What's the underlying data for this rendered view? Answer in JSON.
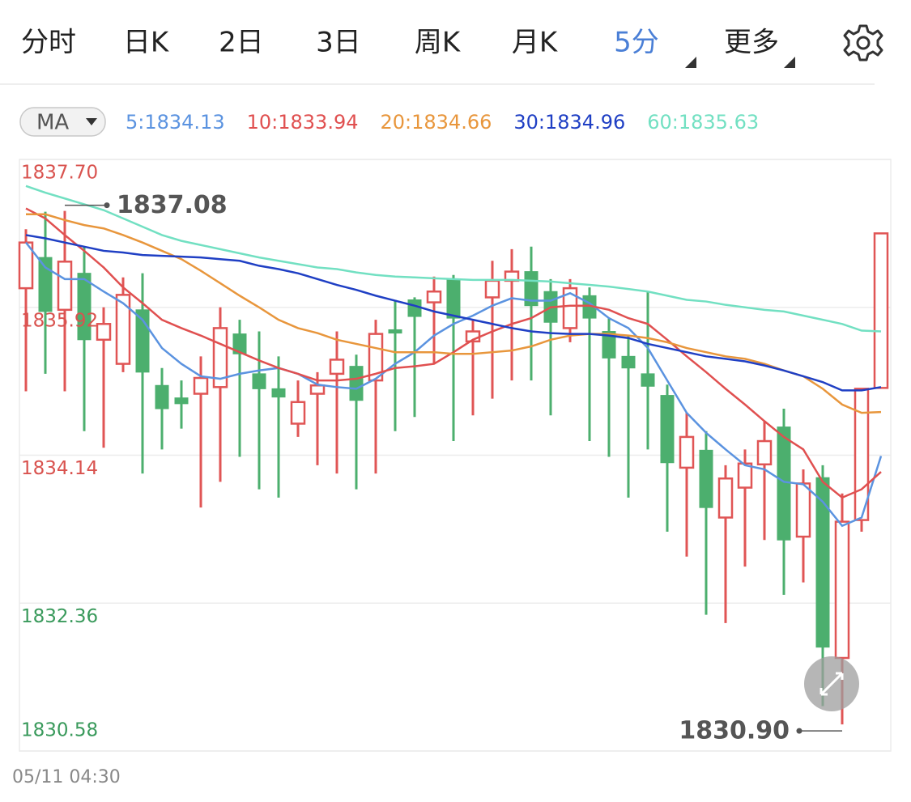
{
  "tabs": [
    "分时",
    "日K",
    "2日",
    "3日",
    "周K",
    "月K",
    "5分",
    "更多"
  ],
  "active_tab": "5分",
  "indicator_button": "MA",
  "chart_data": {
    "type": "candlestick",
    "up_color": "#e05555",
    "down_color": "#4caf6e",
    "categories": [
      "05/11 04:30",
      null,
      null,
      null,
      null,
      null,
      null,
      null,
      null,
      null,
      null,
      null,
      null,
      null,
      null,
      null,
      null,
      null,
      null,
      null,
      null,
      null,
      null,
      null,
      null,
      null,
      null,
      null,
      null,
      null,
      null,
      null,
      null,
      null,
      null,
      null,
      null,
      null,
      null,
      null,
      null,
      null,
      null,
      null,
      null
    ],
    "open": [
      1836.15,
      1836.52,
      1835.89,
      1836.33,
      1835.53,
      1835.24,
      1835.89,
      1834.98,
      1834.83,
      1834.88,
      1834.96,
      1835.6,
      1835.12,
      1834.94,
      1834.52,
      1834.88,
      1835.12,
      1835.21,
      1835.04,
      1835.65,
      1836.01,
      1835.98,
      1836.26,
      1835.51,
      1836.04,
      1836.24,
      1836.35,
      1836.11,
      1835.67,
      1836.06,
      1835.63,
      1835.33,
      1835.12,
      1834.86,
      1833.99,
      1834.2,
      1833.39,
      1833.75,
      1834.03,
      1834.48,
      1833.16,
      1833.87,
      1831.7,
      1833.36,
      1834.95
    ],
    "high": [
      1836.86,
      1837.07,
      1837.08,
      1836.65,
      1835.92,
      1836.28,
      1836.33,
      1835.19,
      1835.04,
      1835.33,
      1835.92,
      1835.77,
      1835.63,
      1835.33,
      1835.04,
      1835.14,
      1835.63,
      1835.35,
      1835.77,
      1836.01,
      1836.04,
      1836.29,
      1836.31,
      1835.77,
      1836.48,
      1836.62,
      1836.65,
      1836.26,
      1836.26,
      1836.16,
      1835.79,
      1835.58,
      1836.11,
      1834.99,
      1834.65,
      1834.43,
      1834.02,
      1834.21,
      1834.55,
      1834.7,
      1833.97,
      1834.02,
      1833.68,
      1834.94,
      1836.81
    ],
    "low": [
      1834.91,
      1835.12,
      1834.91,
      1834.43,
      1834.23,
      1835.14,
      1833.92,
      1834.21,
      1834.46,
      1833.51,
      1833.82,
      1834.12,
      1833.73,
      1833.63,
      1834.36,
      1834.02,
      1833.92,
      1833.73,
      1833.92,
      1834.43,
      1834.6,
      1835.24,
      1834.31,
      1834.62,
      1834.82,
      1835.04,
      1835.04,
      1834.62,
      1835.5,
      1834.31,
      1834.12,
      1833.63,
      1834.21,
      1833.22,
      1832.92,
      1832.22,
      1832.12,
      1832.8,
      1833.12,
      1832.46,
      1832.61,
      1831.12,
      1830.9,
      1833.22,
      1834.95
    ],
    "close": [
      1836.7,
      1835.87,
      1836.47,
      1835.53,
      1835.72,
      1836.07,
      1835.14,
      1834.7,
      1834.76,
      1835.07,
      1835.67,
      1835.36,
      1834.94,
      1834.84,
      1834.78,
      1834.98,
      1835.29,
      1834.8,
      1835.6,
      1835.61,
      1835.81,
      1836.11,
      1835.79,
      1835.63,
      1836.24,
      1836.35,
      1835.94,
      1835.74,
      1836.15,
      1835.79,
      1835.31,
      1835.19,
      1834.97,
      1834.05,
      1834.36,
      1833.51,
      1833.86,
      1834.04,
      1834.31,
      1833.12,
      1833.8,
      1831.83,
      1833.34,
      1834.94,
      1836.81
    ],
    "series": [
      {
        "name": "5:1834.13",
        "color": "#5b93e0",
        "values": [
          1836.7,
          1836.4,
          1836.26,
          1836.26,
          1836.11,
          1835.97,
          1835.77,
          1835.43,
          1835.24,
          1835.09,
          1835.06,
          1835.12,
          1835.16,
          1835.19,
          1835.12,
          1834.99,
          1834.96,
          1834.94,
          1835.06,
          1835.24,
          1835.38,
          1835.58,
          1835.72,
          1835.82,
          1835.94,
          1836.03,
          1836.0,
          1836.0,
          1836.09,
          1835.97,
          1835.79,
          1835.67,
          1835.43,
          1835.04,
          1834.65,
          1834.41,
          1834.21,
          1834.02,
          1833.97,
          1833.82,
          1833.79,
          1833.58,
          1833.29,
          1833.39,
          1834.13
        ]
      },
      {
        "name": "10:1833.94",
        "color": "#e05050",
        "values": [
          1837.11,
          1836.99,
          1836.79,
          1836.6,
          1836.4,
          1836.16,
          1835.97,
          1835.77,
          1835.67,
          1835.58,
          1835.48,
          1835.38,
          1835.28,
          1835.19,
          1835.12,
          1835.04,
          1835.04,
          1835.06,
          1835.12,
          1835.19,
          1835.21,
          1835.24,
          1835.38,
          1835.53,
          1835.63,
          1835.72,
          1835.79,
          1835.92,
          1835.94,
          1835.94,
          1835.89,
          1835.79,
          1835.72,
          1835.53,
          1835.33,
          1835.14,
          1834.94,
          1834.75,
          1834.55,
          1834.36,
          1834.21,
          1833.82,
          1833.63,
          1833.73,
          1833.94
        ]
      },
      {
        "name": "20:1834.66",
        "color": "#e8963c",
        "values": [
          1837.04,
          1837.04,
          1836.97,
          1836.91,
          1836.87,
          1836.79,
          1836.7,
          1836.6,
          1836.5,
          1836.36,
          1836.21,
          1836.06,
          1835.92,
          1835.77,
          1835.67,
          1835.61,
          1835.53,
          1835.48,
          1835.43,
          1835.38,
          1835.38,
          1835.38,
          1835.36,
          1835.36,
          1835.38,
          1835.4,
          1835.45,
          1835.53,
          1835.58,
          1835.6,
          1835.6,
          1835.58,
          1835.55,
          1835.5,
          1835.43,
          1835.38,
          1835.33,
          1835.3,
          1835.24,
          1835.16,
          1835.09,
          1834.94,
          1834.75,
          1834.65,
          1834.66
        ]
      },
      {
        "name": "30:1834.96",
        "color": "#1f3fc4",
        "values": [
          1836.79,
          1836.75,
          1836.7,
          1836.65,
          1836.6,
          1836.58,
          1836.55,
          1836.54,
          1836.53,
          1836.52,
          1836.5,
          1836.48,
          1836.42,
          1836.38,
          1836.33,
          1836.26,
          1836.19,
          1836.13,
          1836.06,
          1836.0,
          1835.94,
          1835.87,
          1835.82,
          1835.77,
          1835.72,
          1835.67,
          1835.63,
          1835.61,
          1835.6,
          1835.6,
          1835.58,
          1835.55,
          1835.48,
          1835.43,
          1835.38,
          1835.33,
          1835.3,
          1835.27,
          1835.22,
          1835.16,
          1835.09,
          1835.02,
          1834.92,
          1834.92,
          1834.96
        ]
      },
      {
        "name": "60:1835.63",
        "color": "#72e0c2",
        "values": [
          1837.38,
          1837.3,
          1837.23,
          1837.16,
          1837.09,
          1836.99,
          1836.89,
          1836.79,
          1836.72,
          1836.67,
          1836.62,
          1836.57,
          1836.52,
          1836.48,
          1836.44,
          1836.4,
          1836.38,
          1836.34,
          1836.31,
          1836.29,
          1836.28,
          1836.27,
          1836.26,
          1836.25,
          1836.25,
          1836.25,
          1836.24,
          1836.23,
          1836.21,
          1836.19,
          1836.17,
          1836.14,
          1836.11,
          1836.06,
          1836.01,
          1835.99,
          1835.95,
          1835.92,
          1835.89,
          1835.87,
          1835.82,
          1835.77,
          1835.72,
          1835.64,
          1835.63
        ]
      }
    ],
    "ylim": [
      1830.58,
      1837.7
    ],
    "yticks": [
      {
        "value": 1837.7,
        "label": "1837.70"
      },
      1835.92,
      1834.14,
      1832.36,
      1830.58
    ],
    "grid": true,
    "annotations": [
      {
        "value": 1837.08,
        "label": "1837.08"
      },
      {
        "value": 1830.9,
        "label": "1830.90"
      }
    ]
  }
}
